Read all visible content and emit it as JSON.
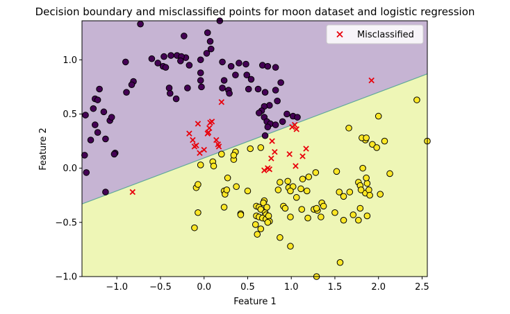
{
  "chart_data": {
    "type": "scatter",
    "title": "Decision boundary and misclassified points for moon dataset and logistic regression",
    "xlabel": "Feature 1",
    "ylabel": "Feature 2",
    "xlim": [
      -1.4,
      2.56
    ],
    "ylim": [
      -1.0,
      1.36
    ],
    "xticks": [
      -1.0,
      -0.5,
      0.0,
      0.5,
      1.0,
      1.5,
      2.0,
      2.5
    ],
    "xtick_labels": [
      "−1.0",
      "−0.5",
      "0.0",
      "0.5",
      "1.0",
      "1.5",
      "2.0",
      "2.5"
    ],
    "yticks": [
      -1.0,
      -0.5,
      0.0,
      0.5,
      1.0
    ],
    "ytick_labels": [
      "−1.0",
      "−0.5",
      "0.0",
      "0.5",
      "1.0"
    ],
    "legend": {
      "label": "Misclassified",
      "position": "upper right"
    },
    "decision_boundary": {
      "x": [
        -1.4,
        2.56
      ],
      "y": [
        -0.33,
        0.87
      ]
    },
    "colors": {
      "class_0_region": "#c6b4d3",
      "class_1_region": "#eef6b6",
      "class_0_point": "#440154",
      "class_1_point": "#fde725",
      "boundary": "#5fa89a",
      "misclassified_marker": "#e8000b"
    },
    "series": [
      {
        "class": 0,
        "points": [
          [
            -0.73,
            1.33
          ],
          [
            -0.23,
            1.22
          ],
          [
            0.04,
            1.25
          ],
          [
            0.18,
            1.36
          ],
          [
            0.07,
            1.17
          ],
          [
            0.08,
            1.1
          ],
          [
            0.03,
            1.06
          ],
          [
            -0.46,
            1.03
          ],
          [
            -0.38,
            1.04
          ],
          [
            -0.31,
            1.04
          ],
          [
            -0.21,
            1.02
          ],
          [
            -0.6,
            1.01
          ],
          [
            -0.53,
            0.97
          ],
          [
            -0.47,
            0.94
          ],
          [
            -0.44,
            0.93
          ],
          [
            -0.26,
            1.03
          ],
          [
            -0.27,
            0.99
          ],
          [
            -0.17,
            0.95
          ],
          [
            -0.9,
            0.98
          ],
          [
            -0.81,
            0.8
          ],
          [
            -0.83,
            0.77
          ],
          [
            -0.89,
            0.7
          ],
          [
            -0.4,
            0.74
          ],
          [
            -0.39,
            0.69
          ],
          [
            -0.19,
            0.74
          ],
          [
            -0.04,
            1.0
          ],
          [
            -0.04,
            0.88
          ],
          [
            -0.04,
            0.81
          ],
          [
            -0.03,
            0.75
          ],
          [
            0.21,
            0.98
          ],
          [
            0.31,
            0.94
          ],
          [
            0.36,
            0.86
          ],
          [
            0.23,
            0.81
          ],
          [
            0.21,
            0.74
          ],
          [
            0.28,
            0.72
          ],
          [
            0.29,
            0.69
          ],
          [
            0.4,
            0.97
          ],
          [
            0.48,
            0.96
          ],
          [
            0.49,
            0.86
          ],
          [
            0.54,
            0.82
          ],
          [
            0.67,
            0.95
          ],
          [
            0.73,
            0.94
          ],
          [
            0.82,
            0.93
          ],
          [
            0.88,
            0.79
          ],
          [
            0.51,
            0.73
          ],
          [
            0.62,
            0.73
          ],
          [
            0.7,
            0.7
          ],
          [
            0.82,
            0.72
          ],
          [
            0.84,
            0.62
          ],
          [
            0.75,
            0.58
          ],
          [
            0.69,
            0.57
          ],
          [
            0.66,
            0.53
          ],
          [
            0.63,
            0.51
          ],
          [
            0.69,
            0.47
          ],
          [
            0.72,
            0.43
          ],
          [
            0.76,
            0.41
          ],
          [
            0.82,
            0.4
          ],
          [
            0.9,
            0.43
          ],
          [
            0.95,
            0.5
          ],
          [
            1.02,
            0.48
          ],
          [
            1.07,
            0.47
          ],
          [
            0.73,
            0.38
          ],
          [
            0.7,
            0.3
          ],
          [
            -0.32,
            0.64
          ],
          [
            -1.2,
            0.73
          ],
          [
            -1.25,
            0.64
          ],
          [
            -1.22,
            0.63
          ],
          [
            -1.27,
            0.55
          ],
          [
            -1.15,
            0.52
          ],
          [
            -1.08,
            0.44
          ],
          [
            -1.06,
            0.47
          ],
          [
            -1.36,
            0.49
          ],
          [
            -1.25,
            0.4
          ],
          [
            -1.22,
            0.33
          ],
          [
            -1.3,
            0.26
          ],
          [
            -1.13,
            0.27
          ],
          [
            -1.37,
            0.12
          ],
          [
            -1.02,
            0.14
          ],
          [
            -1.03,
            0.13
          ],
          [
            -1.35,
            -0.04
          ],
          [
            -1.13,
            -0.22
          ]
        ]
      },
      {
        "class": 1,
        "points": [
          [
            -0.04,
            0.03
          ],
          [
            0.1,
            0.06
          ],
          [
            0.11,
            0.02
          ],
          [
            0.2,
            0.13
          ],
          [
            0.36,
            0.15
          ],
          [
            0.34,
            0.08
          ],
          [
            0.34,
            0.12
          ],
          [
            0.53,
            0.18
          ],
          [
            0.65,
            0.19
          ],
          [
            -0.09,
            -0.18
          ],
          [
            -0.07,
            -0.15
          ],
          [
            0.23,
            -0.21
          ],
          [
            0.24,
            -0.24
          ],
          [
            0.26,
            -0.2
          ],
          [
            0.27,
            -0.09
          ],
          [
            0.37,
            -0.17
          ],
          [
            0.5,
            -0.21
          ],
          [
            0.23,
            -0.36
          ],
          [
            -0.07,
            -0.41
          ],
          [
            -0.11,
            -0.55
          ],
          [
            0.42,
            -0.42
          ],
          [
            0.42,
            -0.43
          ],
          [
            0.6,
            -0.35
          ],
          [
            0.63,
            -0.36
          ],
          [
            0.69,
            -0.3
          ],
          [
            0.68,
            -0.32
          ],
          [
            0.65,
            -0.38
          ],
          [
            0.7,
            -0.41
          ],
          [
            0.71,
            -0.43
          ],
          [
            0.72,
            -0.36
          ],
          [
            0.6,
            -0.44
          ],
          [
            0.63,
            -0.45
          ],
          [
            0.67,
            -0.46
          ],
          [
            0.71,
            -0.47
          ],
          [
            0.74,
            -0.44
          ],
          [
            0.75,
            -0.49
          ],
          [
            0.59,
            -0.52
          ],
          [
            0.65,
            -0.56
          ],
          [
            0.73,
            -0.5
          ],
          [
            0.61,
            -0.61
          ],
          [
            0.85,
            -0.2
          ],
          [
            0.96,
            -0.12
          ],
          [
            0.97,
            -0.18
          ],
          [
            0.87,
            -0.13
          ],
          [
            1.02,
            -0.17
          ],
          [
            0.99,
            -0.21
          ],
          [
            1.11,
            -0.19
          ],
          [
            1.06,
            -0.27
          ],
          [
            1.18,
            -0.21
          ],
          [
            1.28,
            -0.04
          ],
          [
            1.13,
            -0.1
          ],
          [
            1.2,
            -0.08
          ],
          [
            0.91,
            -0.35
          ],
          [
            0.93,
            -0.37
          ],
          [
            0.99,
            -0.45
          ],
          [
            1.12,
            -0.38
          ],
          [
            1.19,
            -0.46
          ],
          [
            1.26,
            -0.38
          ],
          [
            1.35,
            -0.32
          ],
          [
            1.37,
            -0.35
          ],
          [
            1.3,
            -0.39
          ],
          [
            1.34,
            -0.45
          ],
          [
            1.29,
            -0.37
          ],
          [
            1.52,
            -0.03
          ],
          [
            1.55,
            -0.22
          ],
          [
            1.6,
            -0.26
          ],
          [
            1.67,
            -0.22
          ],
          [
            1.71,
            -0.43
          ],
          [
            1.77,
            -0.13
          ],
          [
            1.79,
            -0.16
          ],
          [
            1.82,
            0.0
          ],
          [
            1.87,
            -0.14
          ],
          [
            1.85,
            -0.23
          ],
          [
            1.86,
            -0.09
          ],
          [
            1.89,
            -0.2
          ],
          [
            1.77,
            -0.48
          ],
          [
            1.79,
            -0.37
          ],
          [
            1.87,
            -0.44
          ],
          [
            1.9,
            -0.25
          ],
          [
            1.8,
            -0.2
          ],
          [
            1.85,
            0.26
          ],
          [
            1.81,
            0.28
          ],
          [
            1.86,
            0.28
          ],
          [
            1.93,
            0.22
          ],
          [
            1.98,
            0.19
          ],
          [
            2.07,
            0.25
          ],
          [
            2.0,
            0.48
          ],
          [
            2.02,
            -0.24
          ],
          [
            2.13,
            -0.05
          ],
          [
            1.5,
            -0.41
          ],
          [
            1.6,
            -0.48
          ],
          [
            1.66,
            0.37
          ],
          [
            2.44,
            0.63
          ],
          [
            2.56,
            0.25
          ],
          [
            0.87,
            -0.64
          ],
          [
            0.99,
            -0.72
          ],
          [
            1.56,
            -0.87
          ],
          [
            1.29,
            -1.0
          ]
        ]
      }
    ],
    "misclassified": [
      [
        -0.82,
        -0.22
      ],
      [
        -0.17,
        0.32
      ],
      [
        -0.13,
        0.26
      ],
      [
        -0.07,
        0.41
      ],
      [
        -0.11,
        0.2
      ],
      [
        -0.09,
        0.21
      ],
      [
        -0.05,
        0.14
      ],
      [
        0.0,
        0.17
      ],
      [
        0.04,
        0.32
      ],
      [
        0.06,
        0.37
      ],
      [
        0.05,
        0.33
      ],
      [
        0.07,
        0.42
      ],
      [
        0.09,
        0.43
      ],
      [
        0.14,
        0.26
      ],
      [
        0.17,
        0.2
      ],
      [
        0.16,
        0.22
      ],
      [
        0.2,
        0.61
      ],
      [
        0.69,
        -0.02
      ],
      [
        0.73,
        0.0
      ],
      [
        0.75,
        -0.01
      ],
      [
        0.77,
        0.09
      ],
      [
        0.78,
        0.25
      ],
      [
        0.81,
        0.15
      ],
      [
        0.98,
        0.13
      ],
      [
        1.01,
        0.38
      ],
      [
        1.04,
        0.4
      ],
      [
        1.05,
        0.02
      ],
      [
        1.06,
        0.36
      ],
      [
        1.13,
        0.11
      ],
      [
        1.17,
        0.18
      ],
      [
        1.92,
        0.81
      ]
    ]
  }
}
